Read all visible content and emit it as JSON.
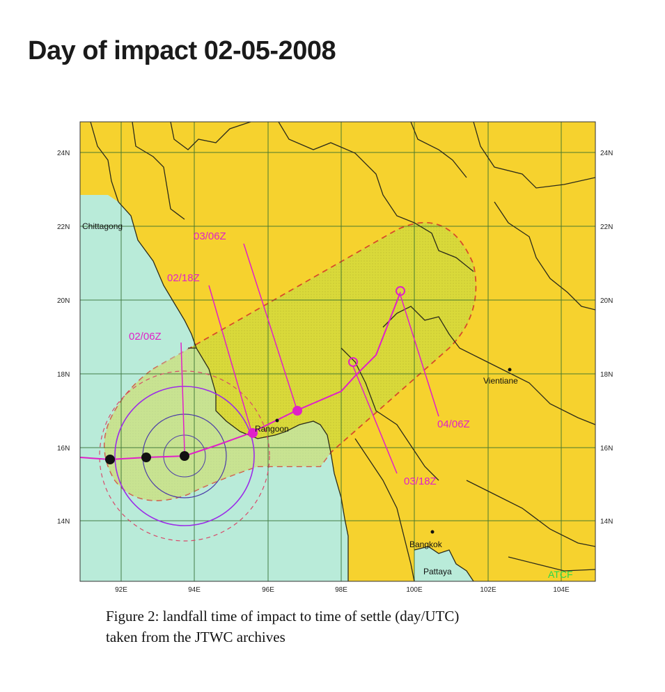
{
  "page": {
    "title": "Day of impact 02-05-2008"
  },
  "map": {
    "lat_labels": [
      "24N",
      "22N",
      "20N",
      "18N",
      "16N",
      "14N"
    ],
    "lon_labels": [
      "92E",
      "94E",
      "96E",
      "98E",
      "100E",
      "102E",
      "104E"
    ],
    "track_labels": [
      "02/06Z",
      "02/18Z",
      "03/06Z",
      "03/18Z",
      "04/06Z"
    ],
    "cities": [
      "Chittagong",
      "Rangoon",
      "Vientiane",
      "Bangkok",
      "Pattaya"
    ],
    "credit": "ATCF",
    "colors": {
      "land": "#f6d22e",
      "sea": "#b9ebd9",
      "warning_area": "#d6d633",
      "track": "#e020c8",
      "danger_circle": "#9b2ce8",
      "grid": "#2e6a2e",
      "border": "#2a2a1a"
    }
  },
  "caption": {
    "line1": "Figure 2: landfall time of impact to time of settle (day/UTC)",
    "line2": "taken from  the JTWC archives"
  }
}
